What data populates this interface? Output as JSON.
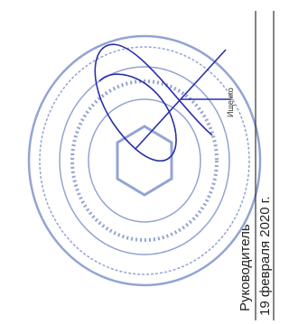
{
  "document": {
    "signature_block": {
      "position": "Руководитель",
      "date": "19 февраля 2020 г.",
      "name": "Ищенко"
    }
  }
}
